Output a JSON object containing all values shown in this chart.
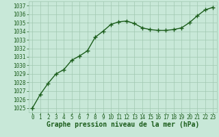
{
  "x": [
    0,
    1,
    2,
    3,
    4,
    5,
    6,
    7,
    8,
    9,
    10,
    11,
    12,
    13,
    14,
    15,
    16,
    17,
    18,
    19,
    20,
    21,
    22,
    23
  ],
  "y": [
    1025.0,
    1026.6,
    1027.9,
    1029.0,
    1029.5,
    1030.6,
    1031.1,
    1031.7,
    1033.3,
    1034.0,
    1034.8,
    1035.1,
    1035.2,
    1034.9,
    1034.4,
    1034.2,
    1034.1,
    1034.1,
    1034.2,
    1034.4,
    1035.0,
    1035.8,
    1036.5,
    1036.8
  ],
  "line_color": "#1a5c1a",
  "bg_color": "#c8e8d8",
  "grid_color": "#a0c8b0",
  "xlabel": "Graphe pression niveau de la mer (hPa)",
  "ylim_min": 1024.5,
  "ylim_max": 1037.5,
  "xlim_min": -0.5,
  "xlim_max": 23.5,
  "yticks": [
    1025,
    1026,
    1027,
    1028,
    1029,
    1030,
    1031,
    1032,
    1033,
    1034,
    1035,
    1036,
    1037
  ],
  "xticks": [
    0,
    1,
    2,
    3,
    4,
    5,
    6,
    7,
    8,
    9,
    10,
    11,
    12,
    13,
    14,
    15,
    16,
    17,
    18,
    19,
    20,
    21,
    22,
    23
  ],
  "marker": "+",
  "markersize": 4,
  "linewidth": 1.0,
  "xlabel_fontsize": 7,
  "tick_fontsize": 5.5,
  "tick_color": "#1a5c1a",
  "xlabel_color": "#1a5c1a",
  "xlabel_fontweight": "bold"
}
